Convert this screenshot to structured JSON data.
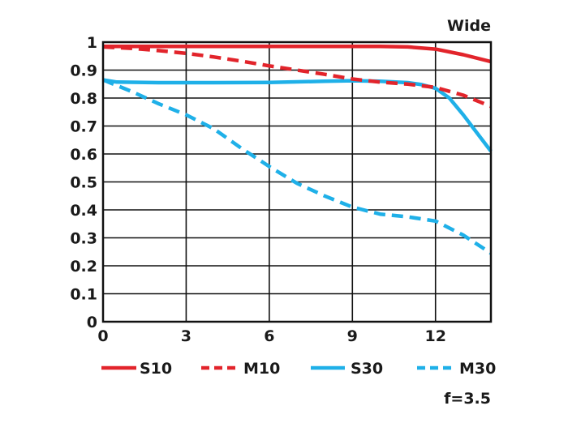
{
  "chart_data": {
    "type": "line",
    "title": "Wide",
    "subtitle": "f=3.5",
    "xlabel": "",
    "ylabel": "",
    "xlim": [
      0,
      14
    ],
    "ylim": [
      0,
      1
    ],
    "xticks": [
      0,
      3,
      6,
      9,
      12
    ],
    "xtick_labels": [
      "0",
      "3",
      "6",
      "9",
      "12"
    ],
    "yticks": [
      0,
      0.1,
      0.2,
      0.3,
      0.4,
      0.5,
      0.6,
      0.7,
      0.8,
      0.9,
      1
    ],
    "ytick_labels": [
      "0",
      "0.1",
      "0.2",
      "0.3",
      "0.4",
      "0.5",
      "0.6",
      "0.7",
      "0.8",
      "0.9",
      "1"
    ],
    "grid": true,
    "legend_position": "bottom",
    "series": [
      {
        "name": "S10",
        "color": "#e2242b",
        "style": "solid",
        "x": [
          0,
          2,
          4,
          6,
          8,
          10,
          11,
          12,
          13,
          14
        ],
        "y": [
          0.985,
          0.985,
          0.985,
          0.985,
          0.985,
          0.985,
          0.983,
          0.975,
          0.955,
          0.93
        ]
      },
      {
        "name": "M10",
        "color": "#e2242b",
        "style": "dashed",
        "x": [
          0,
          1,
          2,
          3,
          4,
          5,
          6,
          7,
          8,
          9,
          10,
          11,
          12,
          13,
          14
        ],
        "y": [
          0.983,
          0.978,
          0.97,
          0.96,
          0.947,
          0.932,
          0.915,
          0.9,
          0.885,
          0.868,
          0.857,
          0.85,
          0.838,
          0.81,
          0.77
        ]
      },
      {
        "name": "S30",
        "color": "#1fb0e8",
        "style": "solid",
        "x": [
          0,
          0.5,
          2,
          4,
          6,
          8,
          9,
          10,
          11,
          11.5,
          12,
          12.5,
          13,
          13.5,
          14
        ],
        "y": [
          0.865,
          0.857,
          0.855,
          0.855,
          0.856,
          0.86,
          0.862,
          0.86,
          0.855,
          0.848,
          0.835,
          0.8,
          0.74,
          0.675,
          0.61
        ]
      },
      {
        "name": "M30",
        "color": "#1fb0e8",
        "style": "dashed",
        "x": [
          0,
          1,
          2,
          3,
          4,
          5,
          6,
          7,
          8,
          9,
          10,
          11,
          12,
          13,
          14
        ],
        "y": [
          0.865,
          0.825,
          0.78,
          0.74,
          0.69,
          0.62,
          0.555,
          0.495,
          0.45,
          0.41,
          0.385,
          0.375,
          0.36,
          0.31,
          0.245
        ]
      }
    ]
  }
}
